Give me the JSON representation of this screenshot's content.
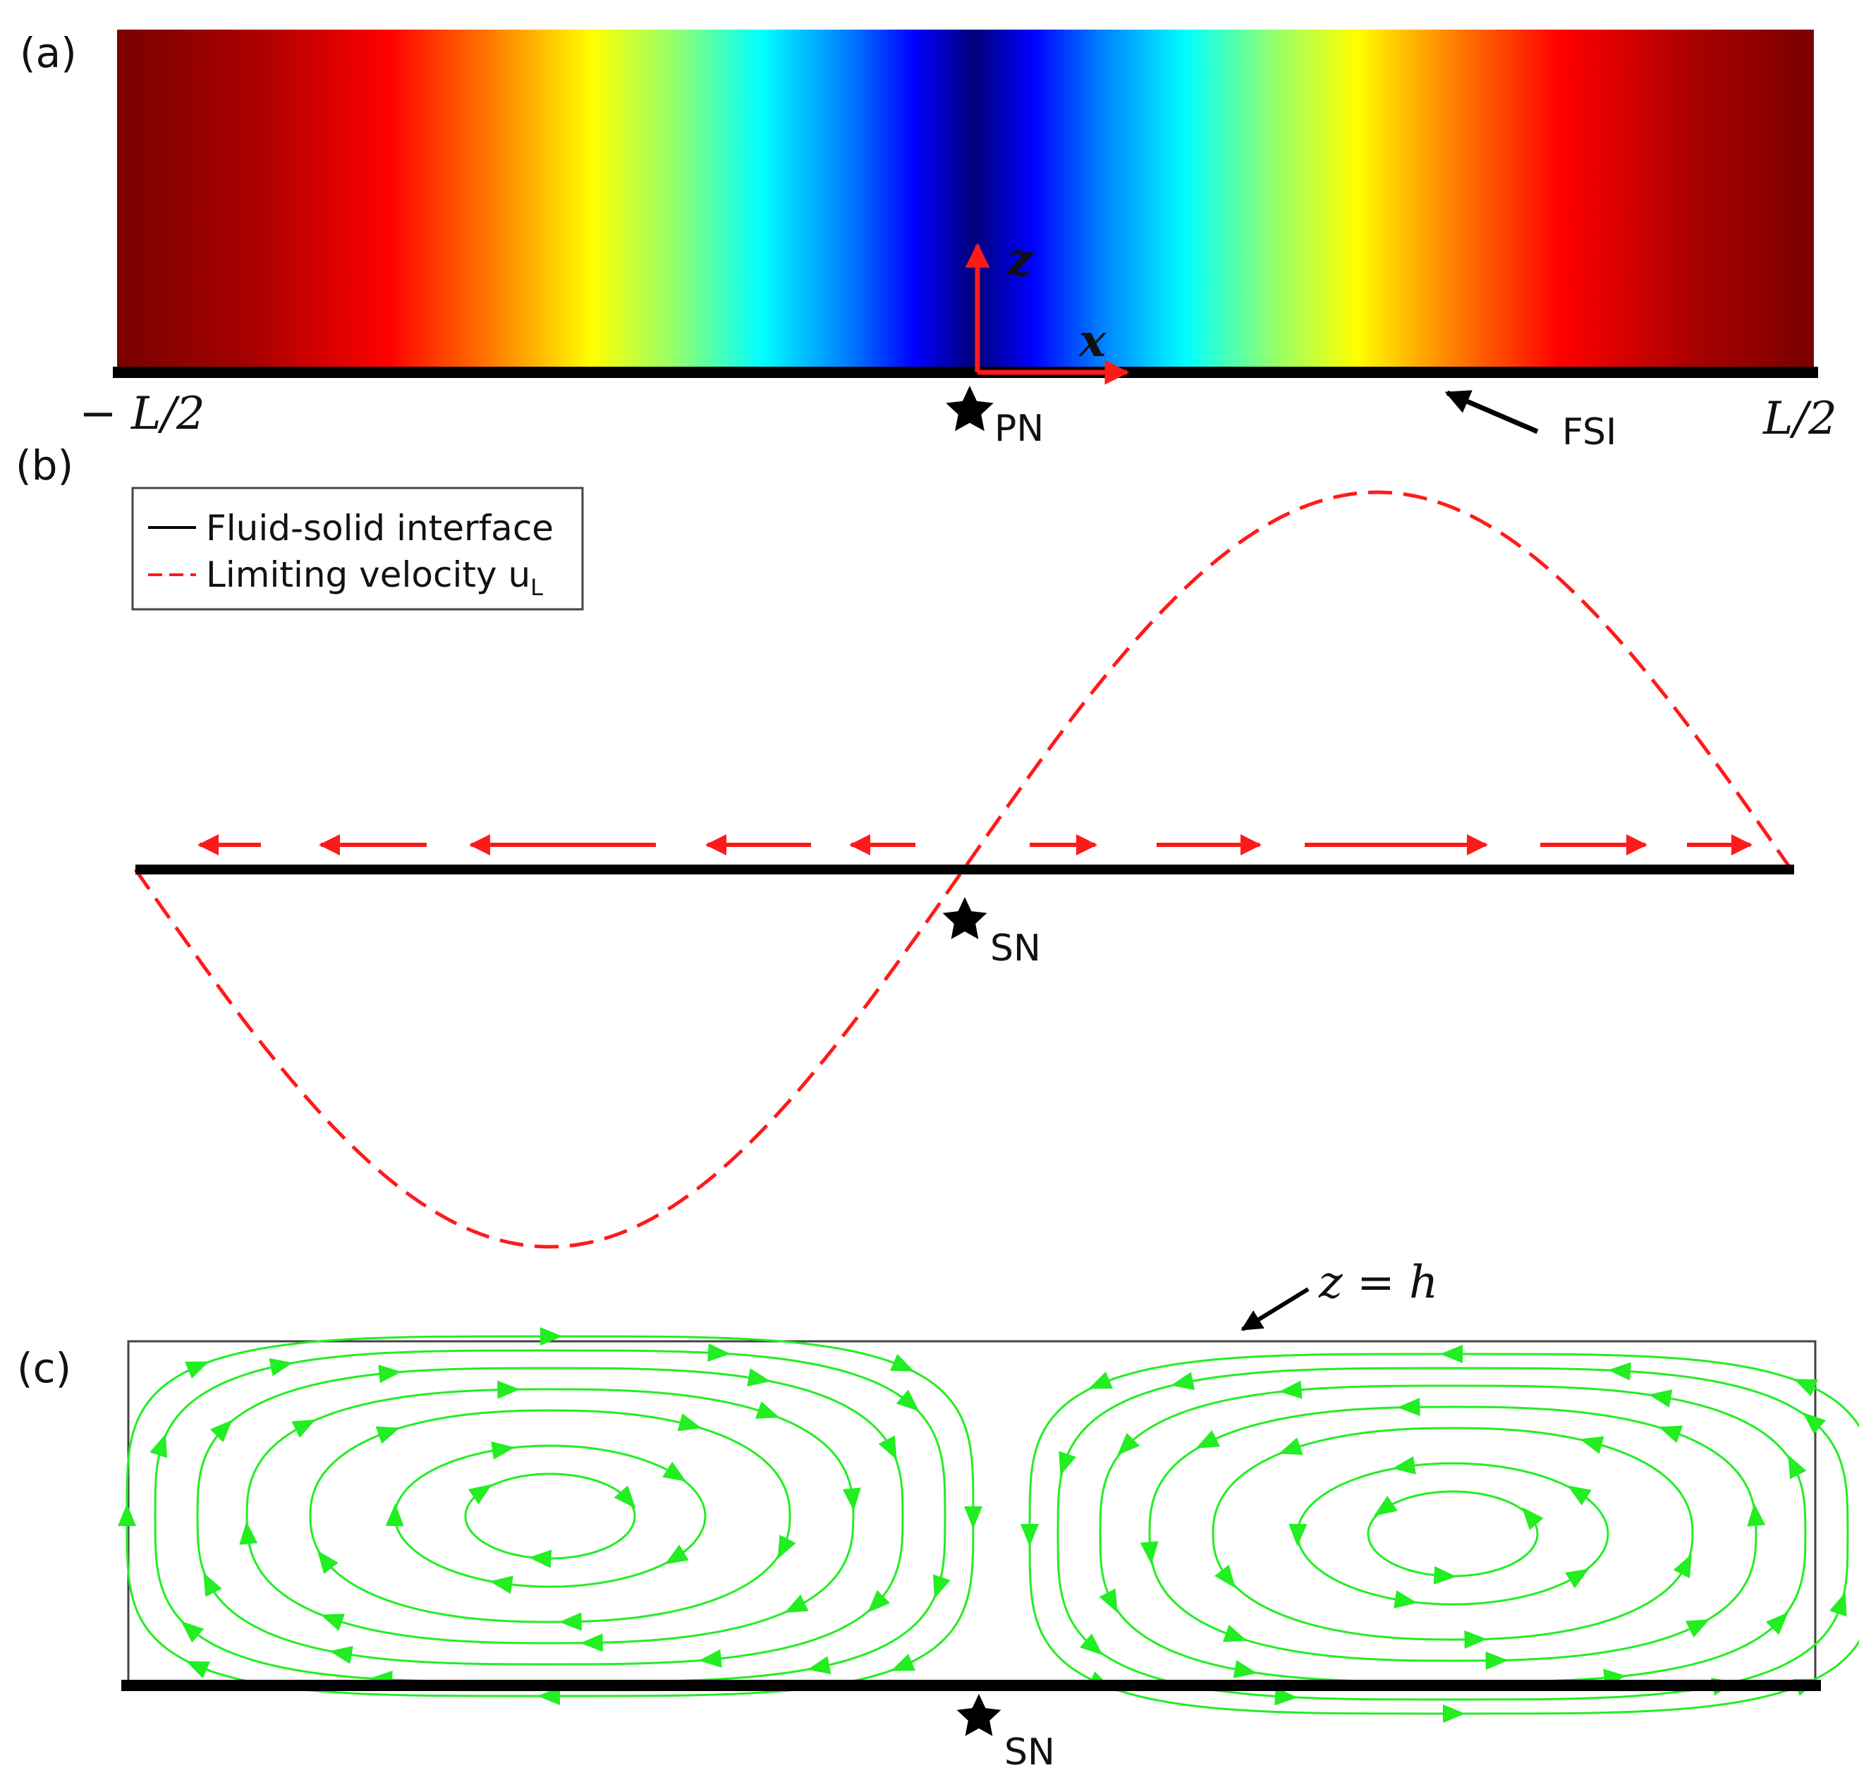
{
  "panels": {
    "a": {
      "label": "(a)",
      "x_left_label": "− L/2",
      "x_right_label": "L/2",
      "axis_z": "z",
      "axis_x": "x",
      "star_label": "PN",
      "arrow_label": "FSI"
    },
    "b": {
      "label": "(b)",
      "legend": {
        "solid_label": "Fluid-solid interface",
        "dashed_label": "Limiting velocity u",
        "dashed_subscript": "L"
      },
      "star_label": "SN"
    },
    "c": {
      "label": "(c)",
      "top_label": "z = h",
      "star_label": "SN"
    }
  },
  "colors": {
    "interface": "#000000",
    "velocity": "#ff1a1a",
    "streamline": "#22ee22",
    "box": "#333333"
  }
}
